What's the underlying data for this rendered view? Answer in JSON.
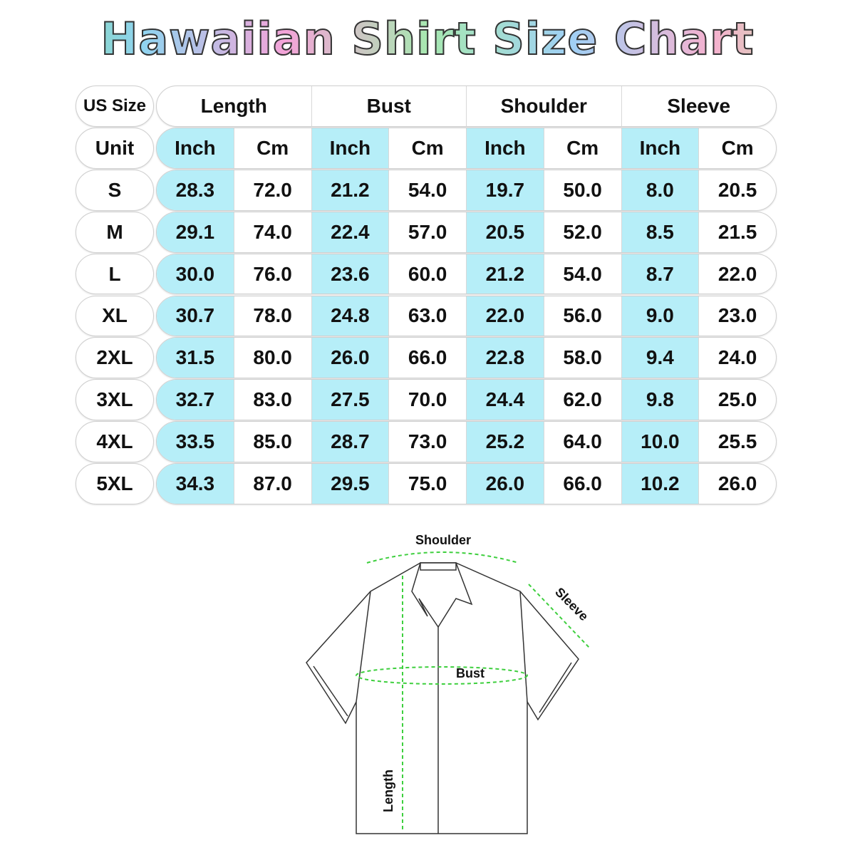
{
  "title": "Hawaiian Shirt Size Chart",
  "table": {
    "corner_label": "US Size",
    "unit_label": "Unit",
    "groups": [
      "Length",
      "Bust",
      "Shoulder",
      "Sleeve"
    ],
    "units": [
      "Inch",
      "Cm",
      "Inch",
      "Cm",
      "Inch",
      "Cm",
      "Inch",
      "Cm"
    ],
    "highlight_color": "#b6eef8",
    "rows": [
      {
        "size": "S",
        "values": [
          "28.3",
          "72.0",
          "21.2",
          "54.0",
          "19.7",
          "50.0",
          "8.0",
          "20.5"
        ]
      },
      {
        "size": "M",
        "values": [
          "29.1",
          "74.0",
          "22.4",
          "57.0",
          "20.5",
          "52.0",
          "8.5",
          "21.5"
        ]
      },
      {
        "size": "L",
        "values": [
          "30.0",
          "76.0",
          "23.6",
          "60.0",
          "21.2",
          "54.0",
          "8.7",
          "22.0"
        ]
      },
      {
        "size": "XL",
        "values": [
          "30.7",
          "78.0",
          "24.8",
          "63.0",
          "22.0",
          "56.0",
          "9.0",
          "23.0"
        ]
      },
      {
        "size": "2XL",
        "values": [
          "31.5",
          "80.0",
          "26.0",
          "66.0",
          "22.8",
          "58.0",
          "9.4",
          "24.0"
        ]
      },
      {
        "size": "3XL",
        "values": [
          "32.7",
          "83.0",
          "27.5",
          "70.0",
          "24.4",
          "62.0",
          "9.8",
          "25.0"
        ]
      },
      {
        "size": "4XL",
        "values": [
          "33.5",
          "85.0",
          "28.7",
          "73.0",
          "25.2",
          "64.0",
          "10.0",
          "25.5"
        ]
      },
      {
        "size": "5XL",
        "values": [
          "34.3",
          "87.0",
          "29.5",
          "75.0",
          "26.0",
          "66.0",
          "10.2",
          "26.0"
        ]
      }
    ]
  },
  "diagram": {
    "labels": {
      "shoulder": "Shoulder",
      "sleeve": "Sleeve",
      "bust": "Bust",
      "length": "Length"
    },
    "measure_color": "#3ecf3e"
  }
}
